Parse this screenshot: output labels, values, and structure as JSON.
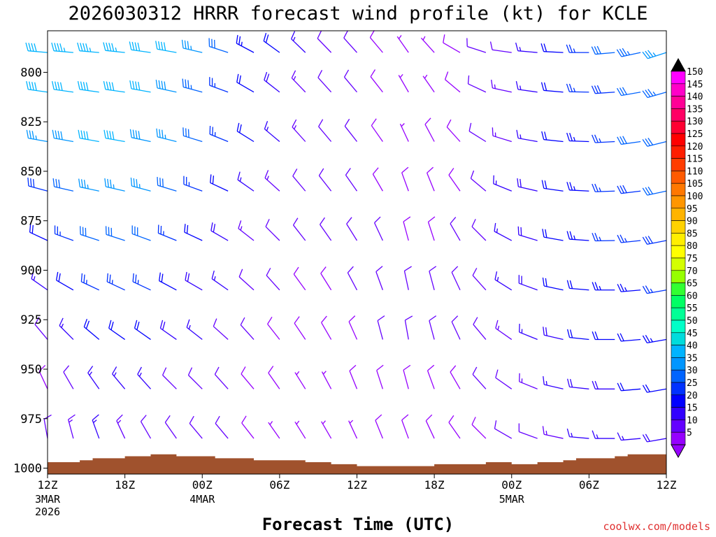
{
  "chart_data": {
    "type": "wind-barb-time-height",
    "title": "2026030312 HRRR forecast wind profile (kt) for KCLE",
    "xlabel": "Forecast Time (UTC)",
    "ylabel": "",
    "x_range_hours": [
      0,
      48
    ],
    "y_range_hpa": [
      1003,
      779
    ],
    "y_ticks": [
      "800",
      "825",
      "850",
      "875",
      "900",
      "925",
      "950",
      "975",
      "1000"
    ],
    "x_ticks": [
      {
        "hour": 0,
        "label": "12Z",
        "sub": [
          "3MAR",
          "2026"
        ]
      },
      {
        "hour": 6,
        "label": "18Z",
        "sub": []
      },
      {
        "hour": 12,
        "label": "00Z",
        "sub": [
          "4MAR"
        ]
      },
      {
        "hour": 18,
        "label": "06Z",
        "sub": []
      },
      {
        "hour": 24,
        "label": "12Z",
        "sub": []
      },
      {
        "hour": 30,
        "label": "18Z",
        "sub": []
      },
      {
        "hour": 36,
        "label": "00Z",
        "sub": [
          "5MAR"
        ]
      },
      {
        "hour": 42,
        "label": "06Z",
        "sub": []
      },
      {
        "hour": 48,
        "label": "12Z",
        "sub": []
      }
    ],
    "colorbar": {
      "labels": [
        "150",
        "145",
        "140",
        "135",
        "130",
        "125",
        "120",
        "115",
        "110",
        "105",
        "100",
        "95",
        "90",
        "85",
        "80",
        "75",
        "70",
        "65",
        "60",
        "55",
        "50",
        "45",
        "40",
        "35",
        "30",
        "25",
        "20",
        "15",
        "10",
        "5"
      ],
      "colors": [
        "#ff00ff",
        "#ff00c8",
        "#ff0096",
        "#ff0064",
        "#ff0032",
        "#ff0000",
        "#ff1e00",
        "#ff3c00",
        "#ff5a00",
        "#ff7800",
        "#ff9600",
        "#ffb400",
        "#ffd200",
        "#ffee00",
        "#ffff00",
        "#d4ff00",
        "#96ff00",
        "#32ff32",
        "#00ff64",
        "#00ff96",
        "#00ffc8",
        "#00dcdc",
        "#00b4ff",
        "#0096ff",
        "#0064ff",
        "#0032ff",
        "#0000ff",
        "#3200ff",
        "#6400ff",
        "#9600ff"
      ],
      "top_arrow_color": "#000000",
      "bottom_arrow_color": "#9600ff"
    },
    "surface_pressure_hpa": [
      {
        "h": 0,
        "p": 997
      },
      {
        "h": 2,
        "p": 997
      },
      {
        "h": 2.5,
        "p": 996
      },
      {
        "h": 3.5,
        "p": 995
      },
      {
        "h": 6,
        "p": 994
      },
      {
        "h": 8,
        "p": 993
      },
      {
        "h": 10,
        "p": 994
      },
      {
        "h": 13,
        "p": 995
      },
      {
        "h": 16,
        "p": 996
      },
      {
        "h": 20,
        "p": 997
      },
      {
        "h": 22,
        "p": 998
      },
      {
        "h": 24,
        "p": 999
      },
      {
        "h": 28,
        "p": 999
      },
      {
        "h": 30,
        "p": 998
      },
      {
        "h": 34,
        "p": 997
      },
      {
        "h": 36,
        "p": 998
      },
      {
        "h": 38,
        "p": 997
      },
      {
        "h": 40,
        "p": 996
      },
      {
        "h": 41,
        "p": 995
      },
      {
        "h": 44,
        "p": 994
      },
      {
        "h": 45,
        "p": 993
      },
      {
        "h": 48,
        "p": 993
      }
    ],
    "wind_barbs": [
      {
        "h": 0,
        "dir": [
          350,
          335,
          320,
          305,
          295,
          285,
          280,
          278,
          275
        ],
        "spd": [
          12,
          8,
          10,
          15,
          20,
          28,
          35,
          40,
          42
        ]
      },
      {
        "h": 2,
        "dir": [
          345,
          330,
          315,
          300,
          290,
          283,
          280,
          278,
          275
        ],
        "spd": [
          14,
          12,
          15,
          20,
          26,
          32,
          38,
          42,
          44
        ]
      },
      {
        "h": 4,
        "dir": [
          340,
          325,
          310,
          295,
          288,
          282,
          280,
          278,
          275
        ],
        "spd": [
          15,
          15,
          20,
          25,
          30,
          36,
          40,
          42,
          44
        ]
      },
      {
        "h": 6,
        "dir": [
          335,
          320,
          305,
          295,
          288,
          283,
          280,
          278,
          276
        ],
        "spd": [
          14,
          16,
          22,
          27,
          32,
          37,
          40,
          42,
          44
        ]
      },
      {
        "h": 8,
        "dir": [
          330,
          318,
          305,
          295,
          290,
          285,
          282,
          280,
          278
        ],
        "spd": [
          12,
          15,
          20,
          25,
          30,
          35,
          38,
          40,
          42
        ]
      },
      {
        "h": 10,
        "dir": [
          325,
          315,
          305,
          298,
          292,
          287,
          284,
          282,
          280
        ],
        "spd": [
          10,
          12,
          18,
          22,
          27,
          32,
          36,
          38,
          40
        ]
      },
      {
        "h": 12,
        "dir": [
          320,
          315,
          308,
          300,
          295,
          290,
          287,
          285,
          283
        ],
        "spd": [
          10,
          12,
          15,
          18,
          22,
          27,
          30,
          33,
          35
        ]
      },
      {
        "h": 14,
        "dir": [
          320,
          318,
          312,
          305,
          300,
          295,
          292,
          290,
          288
        ],
        "spd": [
          10,
          10,
          12,
          15,
          18,
          22,
          25,
          27,
          30
        ]
      },
      {
        "h": 16,
        "dir": [
          322,
          320,
          318,
          312,
          308,
          305,
          302,
          300,
          298
        ],
        "spd": [
          8,
          9,
          10,
          12,
          14,
          17,
          20,
          22,
          24
        ]
      },
      {
        "h": 18,
        "dir": [
          325,
          325,
          322,
          318,
          315,
          312,
          310,
          308,
          306
        ],
        "spd": [
          7,
          8,
          9,
          10,
          12,
          14,
          16,
          18,
          20
        ]
      },
      {
        "h": 20,
        "dir": [
          328,
          328,
          326,
          324,
          322,
          320,
          318,
          316,
          314
        ],
        "spd": [
          6,
          7,
          8,
          9,
          10,
          12,
          13,
          14,
          15
        ]
      },
      {
        "h": 22,
        "dir": [
          330,
          332,
          330,
          328,
          325,
          322,
          320,
          318,
          316
        ],
        "spd": [
          6,
          7,
          8,
          9,
          10,
          11,
          12,
          12,
          12
        ]
      },
      {
        "h": 24,
        "dir": [
          335,
          338,
          336,
          332,
          328,
          325,
          322,
          320,
          318
        ],
        "spd": [
          7,
          8,
          9,
          10,
          10,
          10,
          10,
          10,
          10
        ]
      },
      {
        "h": 26,
        "dir": [
          338,
          342,
          345,
          340,
          335,
          330,
          325,
          322,
          320
        ],
        "spd": [
          8,
          9,
          10,
          10,
          10,
          9,
          8,
          8,
          8
        ]
      },
      {
        "h": 28,
        "dir": [
          340,
          345,
          350,
          348,
          345,
          340,
          335,
          330,
          325
        ],
        "spd": [
          8,
          9,
          10,
          10,
          9,
          8,
          7,
          6,
          6
        ]
      },
      {
        "h": 30,
        "dir": [
          335,
          340,
          345,
          345,
          342,
          338,
          332,
          325,
          318
        ],
        "spd": [
          8,
          9,
          10,
          10,
          9,
          8,
          8,
          7,
          7
        ]
      },
      {
        "h": 32,
        "dir": [
          325,
          330,
          335,
          335,
          330,
          325,
          318,
          310,
          300
        ],
        "spd": [
          8,
          9,
          10,
          10,
          10,
          9,
          9,
          8,
          8
        ]
      },
      {
        "h": 34,
        "dir": [
          315,
          318,
          320,
          318,
          315,
          310,
          302,
          295,
          288
        ],
        "spd": [
          9,
          10,
          11,
          12,
          12,
          12,
          11,
          10,
          10
        ]
      },
      {
        "h": 36,
        "dir": [
          300,
          305,
          305,
          302,
          298,
          292,
          287,
          282,
          278
        ],
        "spd": [
          10,
          12,
          13,
          15,
          15,
          15,
          14,
          13,
          12
        ]
      },
      {
        "h": 38,
        "dir": [
          290,
          292,
          292,
          290,
          287,
          283,
          280,
          278,
          275
        ],
        "spd": [
          12,
          14,
          16,
          18,
          18,
          18,
          17,
          16,
          15
        ]
      },
      {
        "h": 40,
        "dir": [
          282,
          283,
          283,
          282,
          280,
          278,
          276,
          275,
          273
        ],
        "spd": [
          14,
          16,
          18,
          20,
          21,
          21,
          20,
          20,
          20
        ]
      },
      {
        "h": 42,
        "dir": [
          275,
          276,
          276,
          275,
          274,
          273,
          272,
          271,
          270
        ],
        "spd": [
          15,
          18,
          20,
          22,
          23,
          24,
          24,
          25,
          26
        ]
      },
      {
        "h": 44,
        "dir": [
          270,
          270,
          270,
          270,
          269,
          268,
          267,
          266,
          265
        ],
        "spd": [
          16,
          19,
          21,
          23,
          25,
          26,
          27,
          28,
          30
        ]
      },
      {
        "h": 46,
        "dir": [
          265,
          265,
          265,
          265,
          264,
          263,
          262,
          260,
          258
        ],
        "spd": [
          16,
          20,
          22,
          24,
          26,
          28,
          30,
          32,
          34
        ]
      },
      {
        "h": 48,
        "dir": [
          260,
          260,
          260,
          260,
          259,
          258,
          256,
          254,
          252
        ],
        "spd": [
          18,
          22,
          24,
          26,
          28,
          30,
          32,
          34,
          36
        ]
      }
    ],
    "wind_levels_hpa": [
      985,
      960,
      935,
      910,
      885,
      860,
      835,
      810,
      790
    ]
  },
  "credit": "coolwx.com/models"
}
